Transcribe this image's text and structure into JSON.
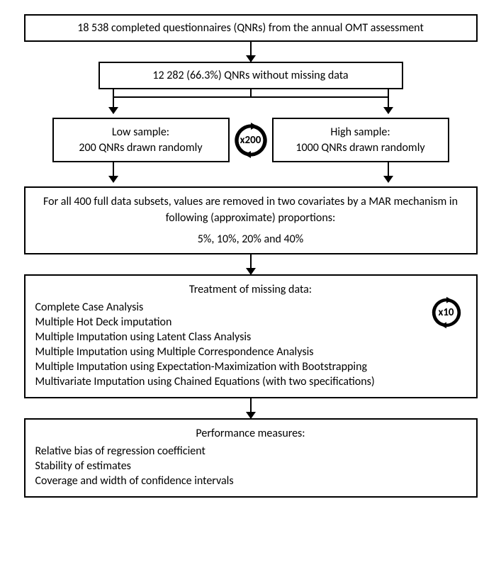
{
  "flow": {
    "box1": "18 538 completed questionnaires (QNRs) from the annual OMT assessment",
    "box2": "12 282 (66.3%) QNRs without missing data",
    "low": {
      "title": "Low sample:",
      "desc": "200 QNRs drawn randomly"
    },
    "high": {
      "title": "High sample:",
      "desc": "1000 QNRs drawn randomly"
    },
    "repeat_split": "x200",
    "box4_l1": "For all 400 full data subsets, values are removed in two covariates by a MAR mechanism in following (approximate) proportions:",
    "box4_l2": "5%, 10%, 20% and 40%",
    "treat_title": "Treatment of missing data:",
    "treat_repeat": "x10",
    "treat_items": [
      "Complete Case Analysis",
      "Multiple Hot Deck imputation",
      "Multiple Imputation using Latent Class Analysis",
      "Multiple Imputation using Multiple Correspondence Analysis",
      "Multiple Imputation using Expectation-Maximization with Bootstrapping",
      "Multivariate Imputation using Chained Equations (with two specifications)"
    ],
    "perf_title": "Performance measures:",
    "perf_items": [
      "Relative bias of regression coefficient",
      "Stability of estimates",
      "Coverage and width of confidence intervals"
    ]
  },
  "style": {
    "border_color": "#000000",
    "bg": "#ffffff",
    "text_color": "#000000",
    "font_size_box": 16,
    "font_size_badge": 15,
    "arrow_head": 10
  }
}
